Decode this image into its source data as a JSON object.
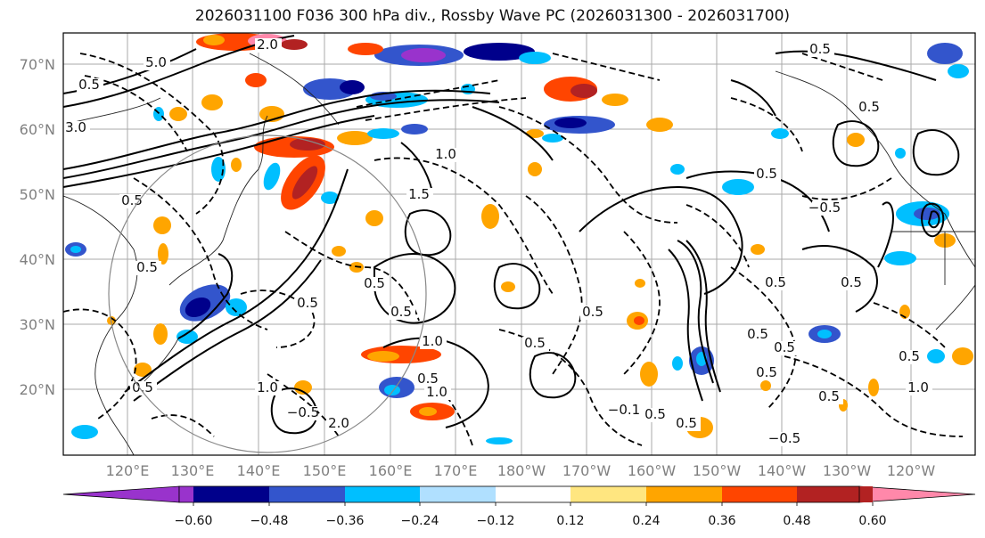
{
  "title": "2026031100 F036 300 hPa div., Rossby Wave PC (2026031300 - 2026031700)",
  "lat_labels": [
    "70°N",
    "60°N",
    "50°N",
    "40°N",
    "30°N",
    "20°N"
  ],
  "lon_labels": [
    "120°E",
    "130°E",
    "140°E",
    "150°E",
    "160°E",
    "170°E",
    "180°W",
    "170°W",
    "160°W",
    "150°W",
    "140°W",
    "130°W",
    "120°W"
  ],
  "colorbar": {
    "colors": [
      "#9933cc",
      "#00008b",
      "#3355cc",
      "#00bfff",
      "#b0e0ff",
      "#ffffff",
      "#ffe680",
      "#ffa500",
      "#ff4500",
      "#b22222",
      "#ff88aa"
    ],
    "over_color": "#ff88aa",
    "under_color": "#9933cc",
    "tick_labels": [
      "−0.60",
      "−0.48",
      "−0.36",
      "−0.24",
      "−0.12",
      "0.12",
      "0.24",
      "0.36",
      "0.48",
      "0.60"
    ]
  },
  "contour_labels": [
    "3.0",
    "5.0",
    "0.5",
    "2.0",
    "1.5",
    "1.0",
    "0.5",
    "0.5",
    "0.5",
    "1.0",
    "0.5",
    "0.5",
    "−0.5",
    "−0.5",
    "0.5",
    "0.5",
    "0.5",
    "0.5",
    "0.5",
    "1.0",
    "−0.5",
    "0.5",
    "0.5",
    "0.5",
    "−0.1",
    "0.5",
    "0.5",
    "0.5",
    "0.5",
    "1.0",
    "0.5",
    "1.0",
    "2.0",
    "0.5",
    "0.5",
    "0.5"
  ]
}
